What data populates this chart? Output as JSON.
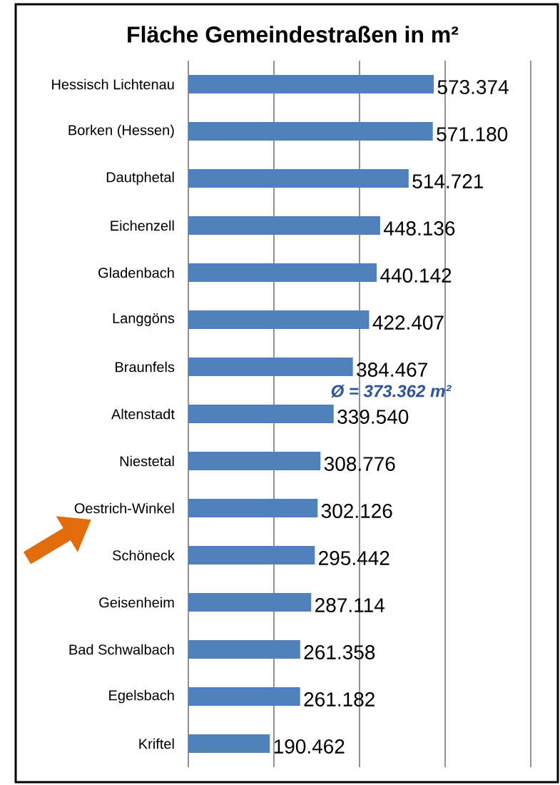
{
  "chart_data": {
    "type": "bar",
    "orientation": "horizontal",
    "title": "Fläche Gemeindestraßen in m²",
    "categories": [
      "Hessisch Lichtenau",
      "Borken (Hessen)",
      "Dautphetal",
      "Eichenzell",
      "Gladenbach",
      "Langgöns",
      "Braunfels",
      "Altenstadt",
      "Niestetal",
      "Oestrich-Winkel",
      "Schöneck",
      "Geisenheim",
      "Bad Schwalbach",
      "Egelsbach",
      "Kriftel"
    ],
    "values": [
      573374,
      571180,
      514721,
      448136,
      440142,
      422407,
      384467,
      339540,
      308776,
      302126,
      295442,
      287114,
      261358,
      261182,
      190462
    ],
    "value_labels": [
      "573.374",
      "571.180",
      "514.721",
      "448.136",
      "440.142",
      "422.407",
      "384.467",
      "339.540",
      "308.776",
      "302.126",
      "295.442",
      "287.114",
      "261.358",
      "261.182",
      "190.462"
    ],
    "color": "#4f81bd",
    "xlim": [
      0,
      800000
    ],
    "xticks": [
      {
        "value": 0,
        "label": null
      },
      {
        "value": 200000,
        "label": null
      },
      {
        "value": 400000,
        "label": null
      },
      {
        "value": 600000,
        "label": null
      },
      {
        "value": 800000,
        "label": null
      }
    ],
    "grid": "x",
    "tick_labels": "y",
    "annotations": [
      "Ø = 373.362 m²"
    ]
  }
}
